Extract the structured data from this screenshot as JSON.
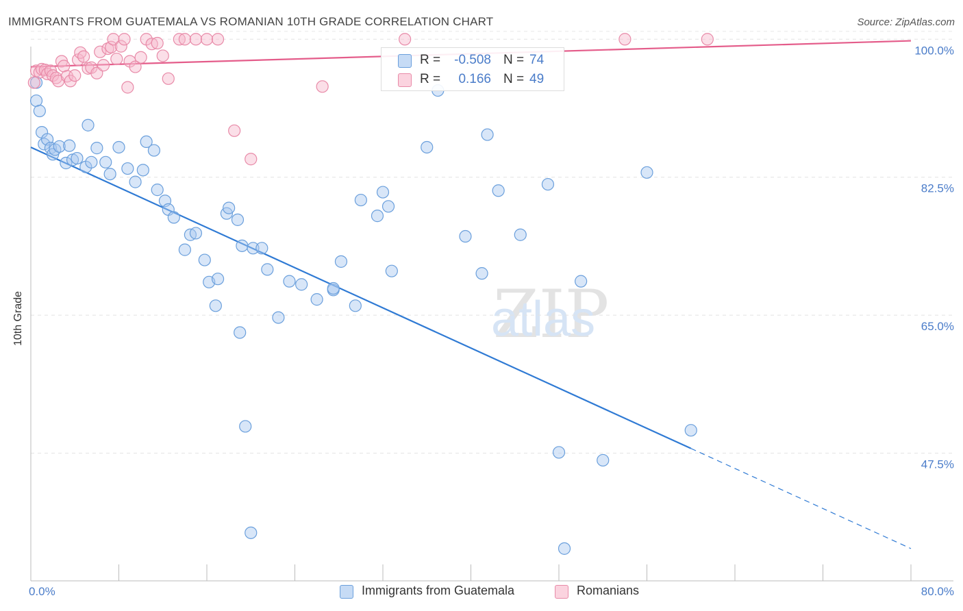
{
  "title": "IMMIGRANTS FROM GUATEMALA VS ROMANIAN 10TH GRADE CORRELATION CHART",
  "source": "Source: ZipAtlas.com",
  "watermark": "ZIPatlas",
  "legend": {
    "rows": [
      {
        "r_label": "R =",
        "r_value": "-0.508",
        "n_label": "N =",
        "n_value": "74",
        "color": "#a8c8f0",
        "border": "#6a9fdc"
      },
      {
        "r_label": "R =",
        "r_value": "0.166",
        "n_label": "N =",
        "n_value": "49",
        "color": "#f6b8cb",
        "border": "#e88aa8"
      }
    ],
    "bottom": [
      "Immigrants from Guatemala",
      "Romanians"
    ]
  },
  "chart_data": {
    "type": "scatter",
    "title": "IMMIGRANTS FROM GUATEMALA VS ROMANIAN 10TH GRADE CORRELATION CHART",
    "xlabel": "",
    "ylabel": "10th Grade",
    "xlim": [
      0,
      80
    ],
    "ylim": [
      32,
      101.5
    ],
    "x_tick_labels": [
      "0.0%",
      "80.0%"
    ],
    "y_ticks": [
      47.5,
      65.0,
      82.5,
      100.0
    ],
    "y_tick_labels": [
      "47.5%",
      "65.0%",
      "82.5%",
      "100.0%"
    ],
    "grid": true,
    "series": [
      {
        "name": "Immigrants from Guatemala",
        "color": "#6a9fdc",
        "fill": "#a8c8f0",
        "trend": {
          "x0": 0,
          "y0": 86.3,
          "x1": 60,
          "y1": 48.1,
          "dash_to_x": 80,
          "dash_to_y": 35.4
        },
        "points": [
          [
            0.5,
            94.5
          ],
          [
            0.5,
            92.2
          ],
          [
            0.8,
            90.9
          ],
          [
            1.0,
            88.2
          ],
          [
            1.2,
            86.7
          ],
          [
            1.5,
            87.3
          ],
          [
            1.8,
            86.2
          ],
          [
            2.0,
            85.4
          ],
          [
            2.2,
            86.0
          ],
          [
            2.6,
            86.4
          ],
          [
            3.2,
            84.3
          ],
          [
            3.5,
            86.5
          ],
          [
            3.8,
            84.7
          ],
          [
            4.2,
            84.9
          ],
          [
            5.0,
            83.8
          ],
          [
            5.2,
            89.1
          ],
          [
            5.5,
            84.4
          ],
          [
            6.0,
            86.2
          ],
          [
            6.8,
            84.4
          ],
          [
            7.2,
            82.9
          ],
          [
            8.0,
            86.3
          ],
          [
            8.8,
            83.6
          ],
          [
            9.5,
            81.9
          ],
          [
            10.2,
            83.4
          ],
          [
            10.5,
            87.0
          ],
          [
            11.2,
            85.9
          ],
          [
            11.5,
            80.9
          ],
          [
            12.2,
            79.5
          ],
          [
            12.5,
            78.4
          ],
          [
            13.0,
            77.4
          ],
          [
            14.0,
            73.3
          ],
          [
            14.5,
            75.2
          ],
          [
            15.0,
            75.4
          ],
          [
            15.8,
            72.0
          ],
          [
            16.2,
            69.2
          ],
          [
            17.0,
            69.6
          ],
          [
            16.8,
            66.2
          ],
          [
            17.8,
            77.9
          ],
          [
            18.0,
            78.6
          ],
          [
            18.8,
            77.1
          ],
          [
            19.2,
            73.8
          ],
          [
            20.2,
            73.5
          ],
          [
            21.0,
            73.5
          ],
          [
            21.5,
            70.8
          ],
          [
            22.5,
            64.7
          ],
          [
            23.5,
            69.3
          ],
          [
            24.6,
            68.9
          ],
          [
            26.0,
            67.0
          ],
          [
            27.5,
            68.2
          ],
          [
            27.5,
            68.4
          ],
          [
            28.2,
            71.8
          ],
          [
            19.0,
            62.8
          ],
          [
            19.5,
            50.9
          ],
          [
            20.0,
            37.4
          ],
          [
            29.5,
            66.2
          ],
          [
            30.0,
            79.6
          ],
          [
            32.0,
            80.6
          ],
          [
            32.5,
            78.8
          ],
          [
            31.5,
            77.6
          ],
          [
            32.8,
            70.6
          ],
          [
            36.0,
            86.3
          ],
          [
            37.0,
            93.5
          ],
          [
            39.5,
            75.0
          ],
          [
            41.0,
            70.3
          ],
          [
            41.5,
            87.9
          ],
          [
            42.5,
            80.8
          ],
          [
            44.5,
            75.2
          ],
          [
            47.0,
            81.6
          ],
          [
            48.0,
            47.6
          ],
          [
            48.5,
            35.4
          ],
          [
            50.0,
            69.3
          ],
          [
            52.0,
            46.6
          ],
          [
            56.0,
            83.1
          ],
          [
            60.0,
            50.4
          ]
        ]
      },
      {
        "name": "Romanians",
        "color": "#e88aa8",
        "fill": "#f6b8cb",
        "trend": {
          "x0": 0,
          "y0": 96.5,
          "x1": 80,
          "y1": 99.8
        },
        "points": [
          [
            0.3,
            94.5
          ],
          [
            0.5,
            96.0
          ],
          [
            0.8,
            95.8
          ],
          [
            1.0,
            96.2
          ],
          [
            1.3,
            96.1
          ],
          [
            1.5,
            95.6
          ],
          [
            1.8,
            96.0
          ],
          [
            2.0,
            95.4
          ],
          [
            2.3,
            95.1
          ],
          [
            2.5,
            94.7
          ],
          [
            2.8,
            97.2
          ],
          [
            3.0,
            96.6
          ],
          [
            3.3,
            95.3
          ],
          [
            3.6,
            94.7
          ],
          [
            4.0,
            95.4
          ],
          [
            4.3,
            97.4
          ],
          [
            4.5,
            98.3
          ],
          [
            4.8,
            97.8
          ],
          [
            5.2,
            96.3
          ],
          [
            5.5,
            96.4
          ],
          [
            6.0,
            95.7
          ],
          [
            6.3,
            98.4
          ],
          [
            6.6,
            96.7
          ],
          [
            7.0,
            98.8
          ],
          [
            7.3,
            99.0
          ],
          [
            7.5,
            100.0
          ],
          [
            7.8,
            97.5
          ],
          [
            8.2,
            99.1
          ],
          [
            8.5,
            100.0
          ],
          [
            8.8,
            93.9
          ],
          [
            9.0,
            97.2
          ],
          [
            9.5,
            96.5
          ],
          [
            10.0,
            97.7
          ],
          [
            10.5,
            100.0
          ],
          [
            11.0,
            99.4
          ],
          [
            11.5,
            99.5
          ],
          [
            12.0,
            97.9
          ],
          [
            12.5,
            95.0
          ],
          [
            13.5,
            100.0
          ],
          [
            14.0,
            100.0
          ],
          [
            15.0,
            100.0
          ],
          [
            16.0,
            100.0
          ],
          [
            17.0,
            100.0
          ],
          [
            18.5,
            88.4
          ],
          [
            20.0,
            84.8
          ],
          [
            26.5,
            94.0
          ],
          [
            34.0,
            100.0
          ],
          [
            54.0,
            100.0
          ],
          [
            61.5,
            100.0
          ]
        ]
      }
    ]
  }
}
